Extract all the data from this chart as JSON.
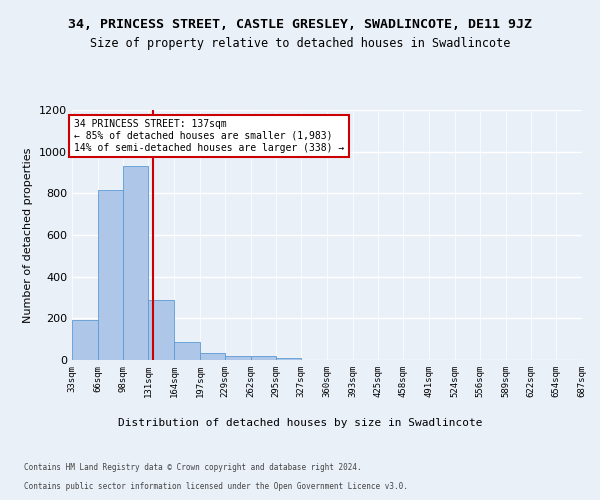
{
  "title": "34, PRINCESS STREET, CASTLE GRESLEY, SWADLINCOTE, DE11 9JZ",
  "subtitle": "Size of property relative to detached houses in Swadlincote",
  "xlabel": "Distribution of detached houses by size in Swadlincote",
  "ylabel": "Number of detached properties",
  "footer_line1": "Contains HM Land Registry data © Crown copyright and database right 2024.",
  "footer_line2": "Contains public sector information licensed under the Open Government Licence v3.0.",
  "bin_edges": [
    33,
    66,
    98,
    131,
    164,
    197,
    229,
    262,
    295,
    327,
    360,
    393,
    425,
    458,
    491,
    524,
    556,
    589,
    622,
    654,
    687
  ],
  "bin_counts": [
    190,
    815,
    930,
    290,
    85,
    35,
    20,
    18,
    12,
    0,
    0,
    0,
    0,
    0,
    0,
    0,
    0,
    0,
    0,
    0
  ],
  "bar_color": "#aec6e8",
  "bar_edge_color": "#5b9bd5",
  "property_size": 137,
  "red_line_color": "#cc0000",
  "annotation_text": "34 PRINCESS STREET: 137sqm\n← 85% of detached houses are smaller (1,983)\n14% of semi-detached houses are larger (338) →",
  "annotation_box_color": "#ffffff",
  "annotation_box_edge_color": "#cc0000",
  "ylim": [
    0,
    1200
  ],
  "yticks": [
    0,
    200,
    400,
    600,
    800,
    1000,
    1200
  ],
  "bg_color": "#eaf0f8",
  "grid_color": "#ffffff",
  "title_fontsize": 9.5,
  "subtitle_fontsize": 8.5,
  "ylabel_fontsize": 8,
  "xlabel_fontsize": 8,
  "tick_label_fontsize": 6.5,
  "ytick_fontsize": 8,
  "annotation_fontsize": 7,
  "footer_fontsize": 5.5
}
